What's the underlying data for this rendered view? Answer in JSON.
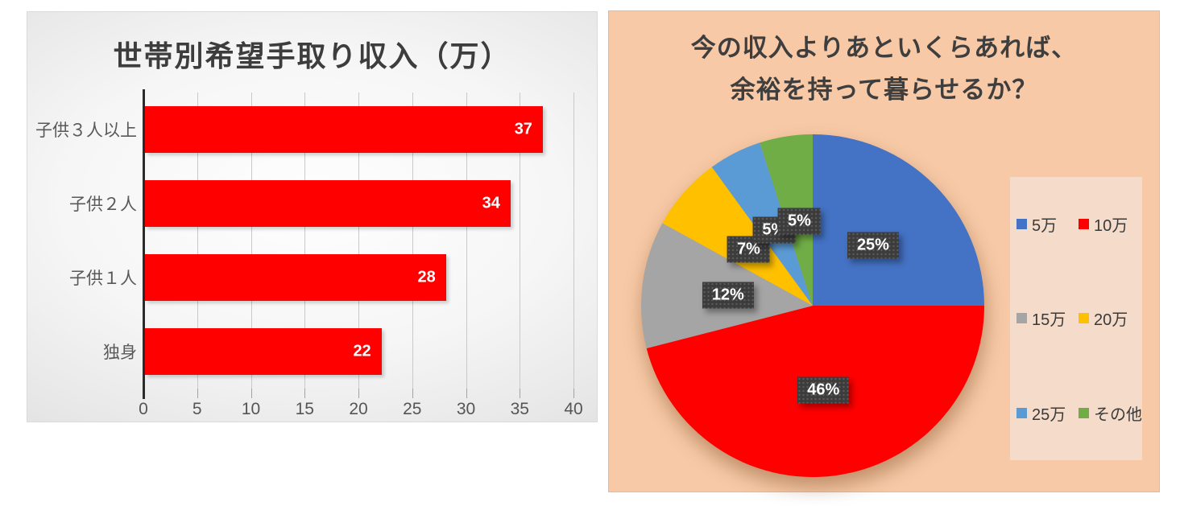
{
  "chart_data": [
    {
      "type": "bar",
      "orientation": "horizontal",
      "title": "世帯別希望手取り収入（万）",
      "categories": [
        "子供３人以上",
        "子供２人",
        "子供１人",
        "独身"
      ],
      "values": [
        37,
        34,
        28,
        22
      ],
      "value_labels": [
        "37",
        "34",
        "28",
        "22"
      ],
      "xlabel": "",
      "ylabel": "",
      "xlim": [
        0,
        40
      ],
      "x_ticks": [
        0,
        5,
        10,
        15,
        20,
        25,
        30,
        35,
        40
      ],
      "grid": true,
      "legend": false,
      "bar_color": "#FE0000",
      "value_label_color": "#FFFFFF",
      "background_style": "gray-gradient"
    },
    {
      "type": "pie",
      "title": "今の収入よりあといくらあれば、余裕を持って暮らせるか？",
      "title_lines": [
        "今の収入よりあといくらあれば、",
        "余裕を持って暮らせるか？"
      ],
      "labels": [
        "5万",
        "10万",
        "15万",
        "20万",
        "25万",
        "その他"
      ],
      "values": [
        25,
        46,
        12,
        7,
        5,
        5
      ],
      "data_labels": [
        "25%",
        "46%",
        "12%",
        "7%",
        "5%",
        "5%"
      ],
      "colors": [
        "#4472C4",
        "#FE0000",
        "#A5A5A5",
        "#FFC000",
        "#5B9BD5",
        "#70AD47"
      ],
      "start_angle_deg": 0,
      "direction": "clockwise",
      "legend_position": "right",
      "legend_columns": 2,
      "background_color": "#F7C9A6",
      "legend_background_color": "#F5DCCA",
      "data_label_box_color": "#3C3C3C",
      "data_label_text_color": "#FFFFFF"
    }
  ]
}
